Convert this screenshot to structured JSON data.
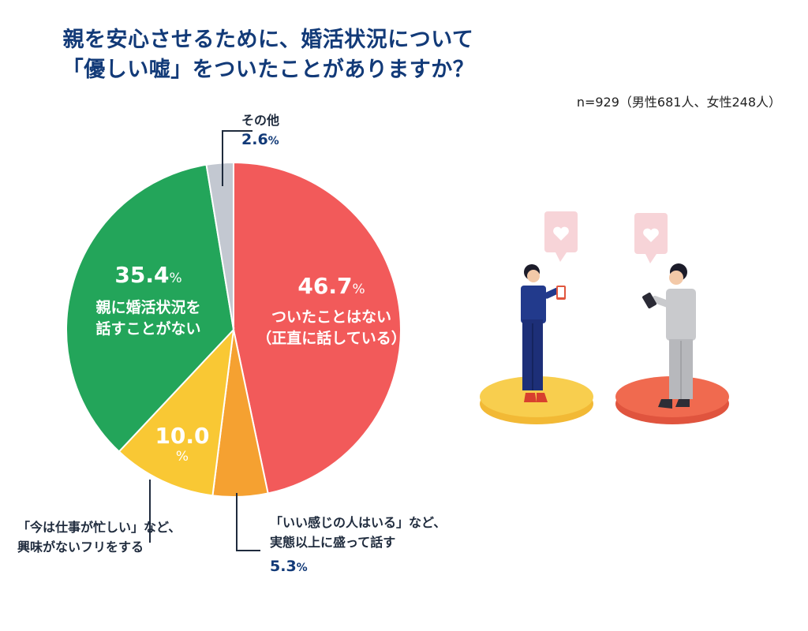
{
  "title_line1": "親を安心させるために、婚活状況について",
  "title_line2": "「優しい嘘」をついたことがありますか？",
  "sample_note": "n=929（男性681人、女性248人）",
  "colors": {
    "title": "#123a78",
    "slice1": "#f25a5a",
    "slice2": "#f5a131",
    "slice3": "#f9c834",
    "slice4": "#23a55a",
    "slice5": "#c3c8d1"
  },
  "chart_data": {
    "type": "pie",
    "slices": [
      {
        "label": "ついたことはない（正直に話している）",
        "value": 46.7,
        "value_text": "46.7",
        "unit": "%",
        "desc1": "ついたことはない",
        "desc2": "（正直に話している）",
        "color": "#f25a5a"
      },
      {
        "label": "「いい感じの人はいる」など、実態以上に盛って話す",
        "value": 5.3,
        "value_text": "5.3",
        "unit": "%",
        "desc1": "「いい感じの人はいる」など、",
        "desc2": "実態以上に盛って話す",
        "color": "#f5a131"
      },
      {
        "label": "「今は仕事が忙しい」など、興味がないフリをする",
        "value": 10.0,
        "value_text": "10.0",
        "unit": "%",
        "desc1": "「今は仕事が忙しい」など、",
        "desc2": "興味がないフリをする",
        "color": "#f9c834"
      },
      {
        "label": "親に婚活状況を話すことがない",
        "value": 35.4,
        "value_text": "35.4",
        "unit": "%",
        "desc1": "親に婚活状況を",
        "desc2": "話すことがない",
        "color": "#23a55a"
      },
      {
        "label": "その他",
        "value": 2.6,
        "value_text": "2.6",
        "unit": "%",
        "desc1": "その他",
        "desc2": "",
        "color": "#c3c8d1"
      }
    ]
  }
}
